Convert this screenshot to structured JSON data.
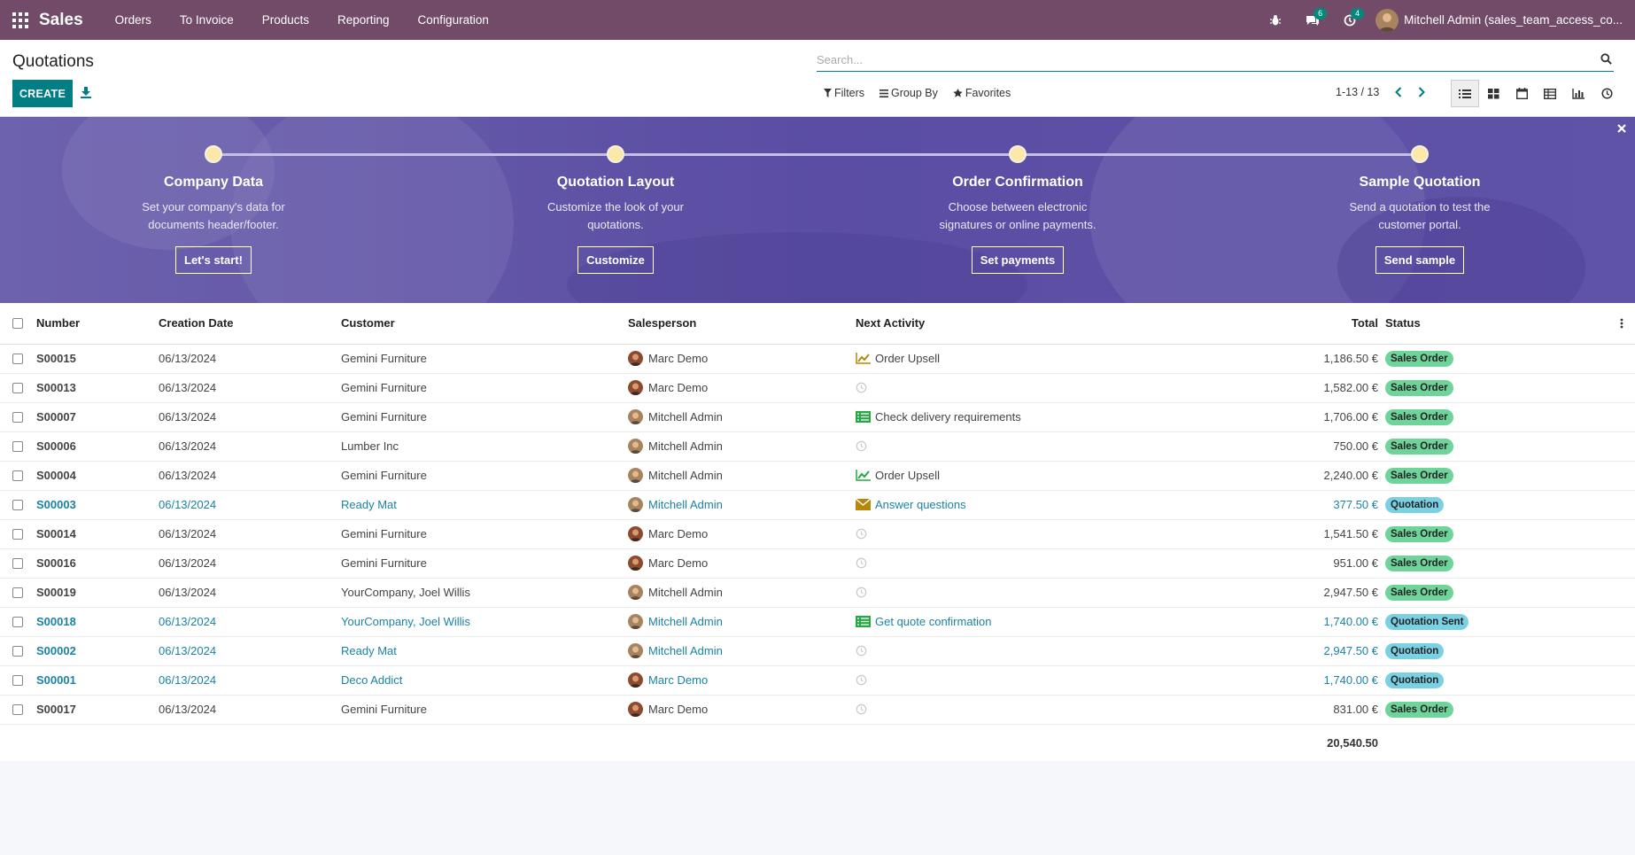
{
  "nav": {
    "brand": "Sales",
    "menu": [
      "Orders",
      "To Invoice",
      "Products",
      "Reporting",
      "Configuration"
    ],
    "messages_count": "6",
    "activities_count": "4",
    "user": "Mitchell Admin (sales_team_access_co..."
  },
  "control": {
    "title": "Quotations",
    "create_label": "CREATE",
    "search_placeholder": "Search...",
    "filters_label": "Filters",
    "groupby_label": "Group By",
    "favorites_label": "Favorites",
    "pager": "1-13 / 13"
  },
  "banner": {
    "steps": [
      {
        "title": "Company Data",
        "desc1": "Set your company's data for",
        "desc2": "documents header/footer.",
        "button": "Let's start!"
      },
      {
        "title": "Quotation Layout",
        "desc1": "Customize the look of your",
        "desc2": "quotations.",
        "button": "Customize"
      },
      {
        "title": "Order Confirmation",
        "desc1": "Choose between electronic",
        "desc2": "signatures or online payments.",
        "button": "Set payments"
      },
      {
        "title": "Sample Quotation",
        "desc1": "Send a quotation to test the",
        "desc2": "customer portal.",
        "button": "Send sample"
      }
    ]
  },
  "table": {
    "headers": {
      "number": "Number",
      "date": "Creation Date",
      "customer": "Customer",
      "salesperson": "Salesperson",
      "activity": "Next Activity",
      "total": "Total",
      "status": "Status"
    },
    "rows": [
      {
        "number": "S00015",
        "date": "06/13/2024",
        "customer": "Gemini Furniture",
        "salesperson": "Marc Demo",
        "activity": "Order Upsell",
        "activity_icon": "chart-up-icon",
        "activity_color": "#b8860b",
        "total": "1,186.50 €",
        "status": "Sales Order",
        "kind": "order"
      },
      {
        "number": "S00013",
        "date": "06/13/2024",
        "customer": "Gemini Furniture",
        "salesperson": "Marc Demo",
        "activity": "",
        "activity_icon": "clock-icon",
        "activity_color": "#ccc",
        "total": "1,582.00 €",
        "status": "Sales Order",
        "kind": "order"
      },
      {
        "number": "S00007",
        "date": "06/13/2024",
        "customer": "Gemini Furniture",
        "salesperson": "Mitchell Admin",
        "activity": "Check delivery requirements",
        "activity_icon": "list-icon",
        "activity_color": "#28a745",
        "total": "1,706.00 €",
        "status": "Sales Order",
        "kind": "order"
      },
      {
        "number": "S00006",
        "date": "06/13/2024",
        "customer": "Lumber Inc",
        "salesperson": "Mitchell Admin",
        "activity": "",
        "activity_icon": "clock-icon",
        "activity_color": "#ccc",
        "total": "750.00 €",
        "status": "Sales Order",
        "kind": "order"
      },
      {
        "number": "S00004",
        "date": "06/13/2024",
        "customer": "Gemini Furniture",
        "salesperson": "Mitchell Admin",
        "activity": "Order Upsell",
        "activity_icon": "chart-up-icon",
        "activity_color": "#28a745",
        "total": "2,240.00 €",
        "status": "Sales Order",
        "kind": "order"
      },
      {
        "number": "S00003",
        "date": "06/13/2024",
        "customer": "Ready Mat",
        "salesperson": "Mitchell Admin",
        "activity": "Answer questions",
        "activity_icon": "envelope-icon",
        "activity_color": "#b8860b",
        "total": "377.50 €",
        "status": "Quotation",
        "kind": "quote"
      },
      {
        "number": "S00014",
        "date": "06/13/2024",
        "customer": "Gemini Furniture",
        "salesperson": "Marc Demo",
        "activity": "",
        "activity_icon": "clock-icon",
        "activity_color": "#ccc",
        "total": "1,541.50 €",
        "status": "Sales Order",
        "kind": "order"
      },
      {
        "number": "S00016",
        "date": "06/13/2024",
        "customer": "Gemini Furniture",
        "salesperson": "Marc Demo",
        "activity": "",
        "activity_icon": "clock-icon",
        "activity_color": "#ccc",
        "total": "951.00 €",
        "status": "Sales Order",
        "kind": "order"
      },
      {
        "number": "S00019",
        "date": "06/13/2024",
        "customer": "YourCompany, Joel Willis",
        "salesperson": "Mitchell Admin",
        "activity": "",
        "activity_icon": "clock-icon",
        "activity_color": "#ccc",
        "total": "2,947.50 €",
        "status": "Sales Order",
        "kind": "order"
      },
      {
        "number": "S00018",
        "date": "06/13/2024",
        "customer": "YourCompany, Joel Willis",
        "salesperson": "Mitchell Admin",
        "activity": "Get quote confirmation",
        "activity_icon": "list-icon",
        "activity_color": "#28a745",
        "total": "1,740.00 €",
        "status": "Quotation Sent",
        "kind": "quote"
      },
      {
        "number": "S00002",
        "date": "06/13/2024",
        "customer": "Ready Mat",
        "salesperson": "Mitchell Admin",
        "activity": "",
        "activity_icon": "clock-icon",
        "activity_color": "#ccc",
        "total": "2,947.50 €",
        "status": "Quotation",
        "kind": "quote"
      },
      {
        "number": "S00001",
        "date": "06/13/2024",
        "customer": "Deco Addict",
        "salesperson": "Marc Demo",
        "activity": "",
        "activity_icon": "clock-icon",
        "activity_color": "#ccc",
        "total": "1,740.00 €",
        "status": "Quotation",
        "kind": "quote"
      },
      {
        "number": "S00017",
        "date": "06/13/2024",
        "customer": "Gemini Furniture",
        "salesperson": "Marc Demo",
        "activity": "",
        "activity_icon": "clock-icon",
        "activity_color": "#ccc",
        "total": "831.00 €",
        "status": "Sales Order",
        "kind": "order"
      }
    ],
    "grand_total": "20,540.50"
  },
  "colors": {
    "navbar": "#714B67",
    "primary": "#017e84",
    "link": "#1a83a4",
    "status_order": "#6fd49a",
    "status_quote": "#7ad1e3"
  }
}
